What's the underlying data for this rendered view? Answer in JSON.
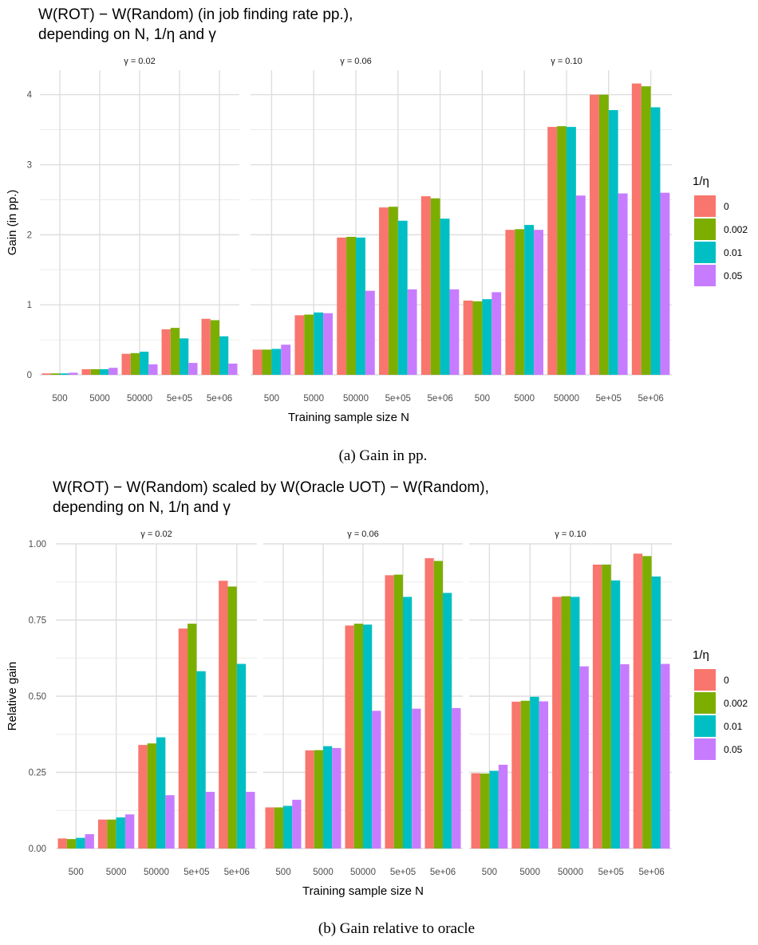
{
  "legend": {
    "title": "1/η",
    "levels": [
      "0",
      "0.002",
      "0.01",
      "0.05"
    ],
    "colors": [
      "#F8766D",
      "#7CAE00",
      "#00BFC4",
      "#C77CFF"
    ]
  },
  "chart_data": [
    {
      "type": "bar",
      "title": "W(ROT) − W(Random) (in job finding rate pp.),\ndepending on N, 1/η and γ",
      "caption": "(a) Gain in pp.",
      "xlabel": "Training sample size N",
      "ylabel": "Gain (in pp.)",
      "ylim": [
        0,
        4.35
      ],
      "yticks": [
        0,
        1,
        2,
        3,
        4
      ],
      "ytick_labels": [
        "0",
        "1",
        "2",
        "3",
        "4"
      ],
      "categories": [
        "500",
        "5000",
        "50000",
        "5e+05",
        "5e+06"
      ],
      "grid": true,
      "legend_position": "right",
      "facets": [
        {
          "label": "γ = 0.02",
          "series": [
            {
              "name": "0",
              "values": [
                0.02,
                0.08,
                0.3,
                0.65,
                0.8
              ]
            },
            {
              "name": "0.002",
              "values": [
                0.02,
                0.08,
                0.31,
                0.67,
                0.78
              ]
            },
            {
              "name": "0.01",
              "values": [
                0.02,
                0.08,
                0.33,
                0.52,
                0.55
              ]
            },
            {
              "name": "0.05",
              "values": [
                0.03,
                0.1,
                0.15,
                0.17,
                0.16
              ]
            }
          ]
        },
        {
          "label": "γ = 0.06",
          "series": [
            {
              "name": "0",
              "values": [
                0.36,
                0.85,
                1.96,
                2.39,
                2.55
              ]
            },
            {
              "name": "0.002",
              "values": [
                0.36,
                0.86,
                1.97,
                2.4,
                2.52
              ]
            },
            {
              "name": "0.01",
              "values": [
                0.37,
                0.89,
                1.96,
                2.2,
                2.23
              ]
            },
            {
              "name": "0.05",
              "values": [
                0.43,
                0.88,
                1.2,
                1.22,
                1.22
              ]
            }
          ]
        },
        {
          "label": "γ = 0.10",
          "series": [
            {
              "name": "0",
              "values": [
                1.06,
                2.07,
                3.54,
                4.0,
                4.16
              ]
            },
            {
              "name": "0.002",
              "values": [
                1.05,
                2.08,
                3.55,
                4.0,
                4.12
              ]
            },
            {
              "name": "0.01",
              "values": [
                1.08,
                2.14,
                3.54,
                3.78,
                3.82
              ]
            },
            {
              "name": "0.05",
              "values": [
                1.18,
                2.07,
                2.56,
                2.59,
                2.6
              ]
            }
          ]
        }
      ]
    },
    {
      "type": "bar",
      "title": "W(ROT) − W(Random) scaled by W(Oracle UOT) − W(Random),\ndepending on N, 1/η and γ",
      "caption": "(b) Gain relative to oracle",
      "xlabel": "Training sample size N",
      "ylabel": "Relative gain",
      "ylim": [
        0,
        1.0
      ],
      "yticks": [
        0,
        0.25,
        0.5,
        0.75,
        1.0
      ],
      "ytick_labels": [
        "0.00",
        "0.25",
        "0.50",
        "0.75",
        "1.00"
      ],
      "categories": [
        "500",
        "5000",
        "50000",
        "5e+05",
        "5e+06"
      ],
      "grid": true,
      "legend_position": "right",
      "facets": [
        {
          "label": "γ = 0.02",
          "series": [
            {
              "name": "0",
              "values": [
                0.033,
                0.095,
                0.34,
                0.722,
                0.879
              ]
            },
            {
              "name": "0.002",
              "values": [
                0.031,
                0.095,
                0.345,
                0.738,
                0.86
              ]
            },
            {
              "name": "0.01",
              "values": [
                0.035,
                0.102,
                0.365,
                0.582,
                0.606
              ]
            },
            {
              "name": "0.05",
              "values": [
                0.047,
                0.112,
                0.175,
                0.186,
                0.186
              ]
            }
          ]
        },
        {
          "label": "γ = 0.06",
          "series": [
            {
              "name": "0",
              "values": [
                0.135,
                0.322,
                0.732,
                0.897,
                0.953
              ]
            },
            {
              "name": "0.002",
              "values": [
                0.135,
                0.323,
                0.738,
                0.899,
                0.944
              ]
            },
            {
              "name": "0.01",
              "values": [
                0.14,
                0.336,
                0.735,
                0.826,
                0.839
              ]
            },
            {
              "name": "0.05",
              "values": [
                0.16,
                0.33,
                0.452,
                0.459,
                0.461
              ]
            }
          ]
        },
        {
          "label": "γ = 0.10",
          "series": [
            {
              "name": "0",
              "values": [
                0.247,
                0.482,
                0.826,
                0.932,
                0.968
              ]
            },
            {
              "name": "0.002",
              "values": [
                0.246,
                0.485,
                0.828,
                0.932,
                0.96
              ]
            },
            {
              "name": "0.01",
              "values": [
                0.255,
                0.498,
                0.826,
                0.88,
                0.893
              ]
            },
            {
              "name": "0.05",
              "values": [
                0.275,
                0.483,
                0.598,
                0.605,
                0.606
              ]
            }
          ]
        }
      ]
    }
  ]
}
